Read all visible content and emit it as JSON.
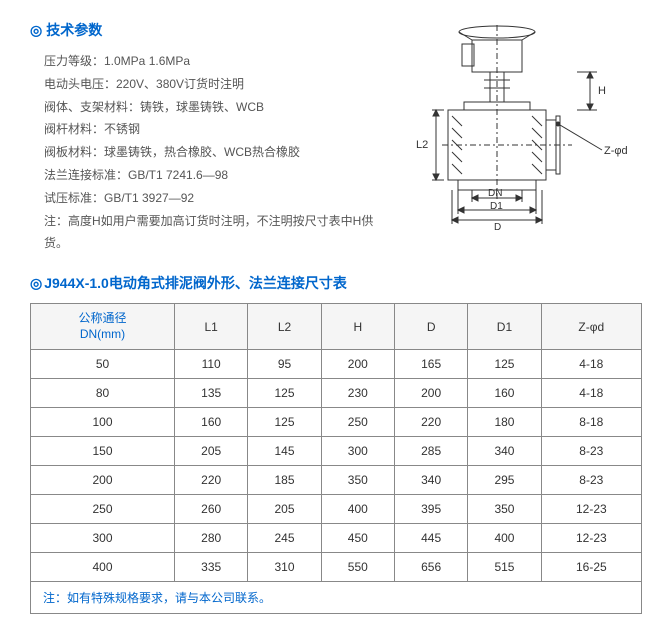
{
  "specs": {
    "title": "技术参数",
    "lines": [
      "压力等级：1.0MPa  1.6MPa",
      "电动头电压：220V、380V订货时注明",
      "阀体、支架材料：铸铁，球墨铸铁、WCB",
      "阀杆材料：不锈钢",
      "阀板材料：球墨铸铁，热合橡胶、WCB热合橡胶",
      "法兰连接标准：GB/T1 7241.6—98",
      "试压标准：GB/T1 3927—92",
      "注：高度H如用户需要加高订货时注明，不注明按尺寸表中H供货。"
    ]
  },
  "diagram_labels": {
    "H": "H",
    "L2": "L2",
    "DN": "DN",
    "D": "D",
    "D1": "D1",
    "Zd": "Z-φd"
  },
  "table": {
    "title": "J944X-1.0电动角式排泥阀外形、法兰连接尺寸表",
    "columns": [
      "公称通径\nDN(mm)",
      "L1",
      "L2",
      "H",
      "D",
      "D1",
      "Z-φd"
    ],
    "rows": [
      [
        "50",
        "110",
        "95",
        "200",
        "165",
        "125",
        "4-18"
      ],
      [
        "80",
        "135",
        "125",
        "230",
        "200",
        "160",
        "4-18"
      ],
      [
        "100",
        "160",
        "125",
        "250",
        "220",
        "180",
        "8-18"
      ],
      [
        "150",
        "205",
        "145",
        "300",
        "285",
        "340",
        "8-23"
      ],
      [
        "200",
        "220",
        "185",
        "350",
        "340",
        "295",
        "8-23"
      ],
      [
        "250",
        "260",
        "205",
        "400",
        "395",
        "350",
        "12-23"
      ],
      [
        "300",
        "280",
        "245",
        "450",
        "445",
        "400",
        "12-23"
      ],
      [
        "400",
        "335",
        "310",
        "550",
        "656",
        "515",
        "16-25"
      ]
    ],
    "note": "注：如有特殊规格要求，请与本公司联系。"
  },
  "colors": {
    "accent": "#0066cc",
    "text": "#555555",
    "border": "#888888"
  }
}
